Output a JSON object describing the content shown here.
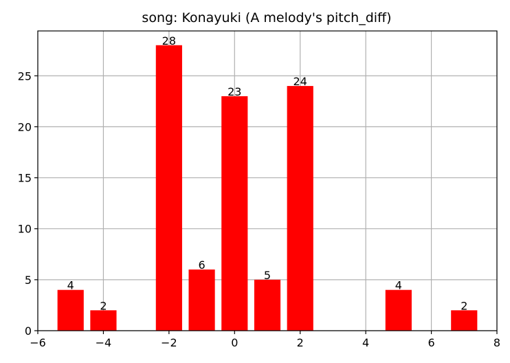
{
  "chart_data": {
    "type": "bar",
    "title": "song: Konayuki (A melody's pitch_diff)",
    "xlabel": "",
    "ylabel": "",
    "x": [
      -5,
      -4,
      -2,
      -1,
      0,
      1,
      2,
      5,
      7
    ],
    "values": [
      4,
      2,
      28,
      6,
      23,
      5,
      24,
      4,
      2
    ],
    "data_labels": [
      "4",
      "2",
      "28",
      "6",
      "23",
      "5",
      "24",
      "4",
      "2"
    ],
    "xlim": [
      -6,
      8
    ],
    "ylim": [
      0,
      29.4
    ],
    "xticks": [
      -6,
      -4,
      -2,
      0,
      2,
      4,
      6,
      8
    ],
    "xtick_labels": [
      "−6",
      "−4",
      "−2",
      "0",
      "2",
      "4",
      "6",
      "8"
    ],
    "yticks": [
      0,
      5,
      10,
      15,
      20,
      25
    ],
    "ytick_labels": [
      "0",
      "5",
      "10",
      "15",
      "20",
      "25"
    ],
    "bar_width": 0.8,
    "grid": true,
    "bar_color": "#ff0000",
    "grid_color": "#b0b0b0"
  }
}
